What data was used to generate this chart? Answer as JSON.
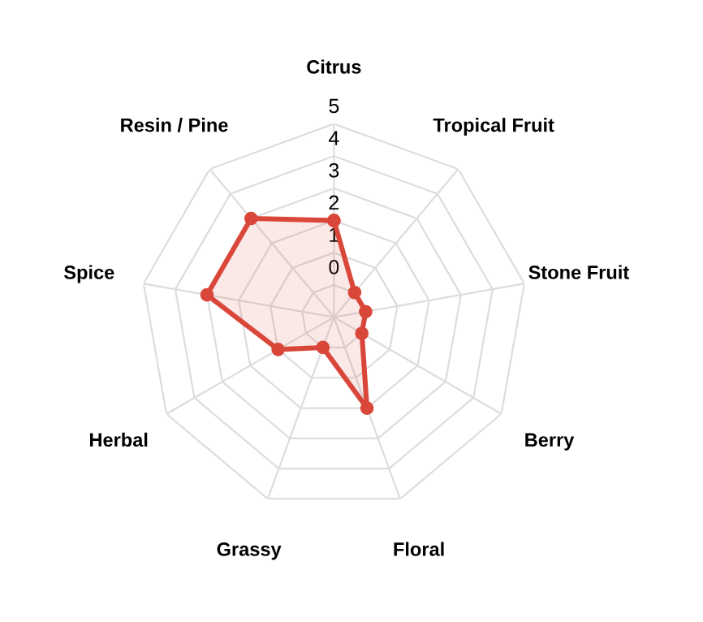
{
  "chart_data": {
    "type": "radar",
    "categories": [
      "Citrus",
      "Tropical Fruit",
      "Stone Fruit",
      "Berry",
      "Floral",
      "Grassy",
      "Herbal",
      "Spice",
      "Resin / Pine"
    ],
    "series": [
      {
        "color": "#d9473a",
        "values": [
          2,
          0,
          0,
          0,
          2,
          0,
          1,
          3,
          3
        ]
      }
    ],
    "ylim": [
      -1,
      5
    ],
    "yticks": [
      0,
      1,
      2,
      3,
      4,
      5
    ],
    "grid": true,
    "marker": "circle",
    "legend": false
  }
}
